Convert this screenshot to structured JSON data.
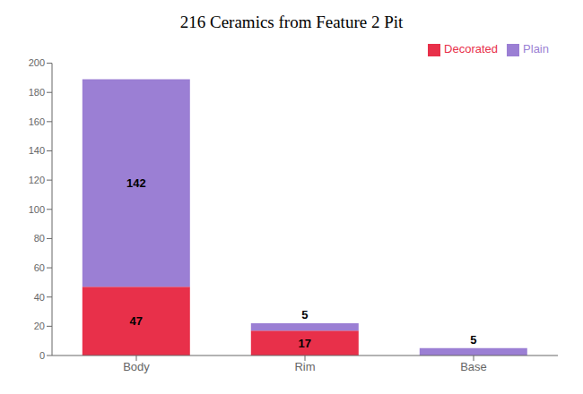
{
  "chart_data": {
    "type": "bar",
    "title": "216 Ceramics from Feature 2 Pit",
    "categories": [
      "Body",
      "Rim",
      "Base"
    ],
    "series": [
      {
        "name": "Decorated",
        "color": "#e8304a",
        "values": [
          47,
          17,
          0
        ]
      },
      {
        "name": "Plain",
        "color": "#9b7fd4",
        "values": [
          142,
          5,
          5
        ]
      }
    ],
    "stacked": true,
    "ylim": [
      0,
      200
    ],
    "yticks": [
      0,
      20,
      40,
      60,
      80,
      100,
      120,
      140,
      160,
      180,
      200
    ],
    "grid": false,
    "legend": "upper right",
    "data_labels": true
  }
}
